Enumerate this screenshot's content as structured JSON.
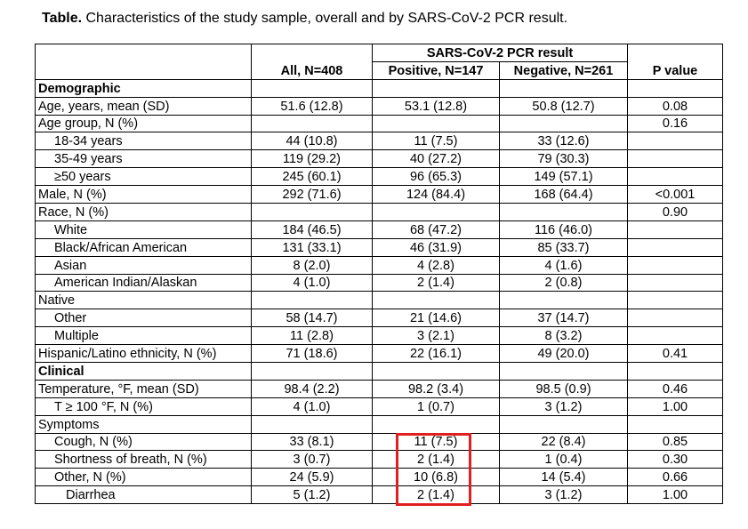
{
  "caption": {
    "label": "Table.",
    "text": " Characteristics of the study sample, overall and by SARS-CoV-2 PCR result."
  },
  "header": {
    "group": "SARS-CoV-2 PCR result",
    "all": "All, N=408",
    "positive": "Positive, N=147",
    "negative": "Negative, N=261",
    "pvalue": "P value"
  },
  "rows": [
    {
      "label": "Demographic",
      "all": "",
      "pos": "",
      "neg": "",
      "p": ""
    },
    {
      "label": "Age, years, mean (SD)",
      "all": "51.6 (12.8)",
      "pos": "53.1 (12.8)",
      "neg": "50.8 (12.7)",
      "p": "0.08"
    },
    {
      "label": "Age group, N (%)",
      "all": "",
      "pos": "",
      "neg": "",
      "p": "0.16"
    },
    {
      "label": "18-34 years",
      "all": "44 (10.8)",
      "pos": "11 (7.5)",
      "neg": "33 (12.6)",
      "p": ""
    },
    {
      "label": "35-49 years",
      "all": "119 (29.2)",
      "pos": "40 (27.2)",
      "neg": "79 (30.3)",
      "p": ""
    },
    {
      "label": "≥50 years",
      "all": "245 (60.1)",
      "pos": "96 (65.3)",
      "neg": "149 (57.1)",
      "p": ""
    },
    {
      "label": "Male, N (%)",
      "all": "292 (71.6)",
      "pos": "124 (84.4)",
      "neg": "168 (64.4)",
      "p": "<0.001"
    },
    {
      "label": "Race, N (%)",
      "all": "",
      "pos": "",
      "neg": "",
      "p": "0.90"
    },
    {
      "label": "White",
      "all": "184 (46.5)",
      "pos": "68 (47.2)",
      "neg": "116 (46.0)",
      "p": ""
    },
    {
      "label": "Black/African American",
      "all": "131 (33.1)",
      "pos": "46 (31.9)",
      "neg": "85 (33.7)",
      "p": ""
    },
    {
      "label": "Asian",
      "all": "8 (2.0)",
      "pos": "4 (2.8)",
      "neg": "4 (1.6)",
      "p": ""
    },
    {
      "label": "American Indian/Alaskan",
      "all": "4 (1.0)",
      "pos": "2 (1.4)",
      "neg": "2 (0.8)",
      "p": ""
    },
    {
      "label": "Native",
      "all": "",
      "pos": "",
      "neg": "",
      "p": ""
    },
    {
      "label": "Other",
      "all": "58 (14.7)",
      "pos": "21 (14.6)",
      "neg": "37 (14.7)",
      "p": ""
    },
    {
      "label": "Multiple",
      "all": "11 (2.8)",
      "pos": "3 (2.1)",
      "neg": "8 (3.2)",
      "p": ""
    },
    {
      "label": "Hispanic/Latino ethnicity, N (%)",
      "all": "71 (18.6)",
      "pos": "22 (16.1)",
      "neg": "49 (20.0)",
      "p": "0.41"
    },
    {
      "label": "Clinical",
      "all": "",
      "pos": "",
      "neg": "",
      "p": ""
    },
    {
      "label": "Temperature, °F, mean (SD)",
      "all": "98.4 (2.2)",
      "pos": "98.2 (3.4)",
      "neg": "98.5 (0.9)",
      "p": "0.46"
    },
    {
      "label": "T ≥ 100 °F, N (%)",
      "all": "4 (1.0)",
      "pos": "1 (0.7)",
      "neg": "3 (1.2)",
      "p": "1.00"
    },
    {
      "label": "Symptoms",
      "all": "",
      "pos": "",
      "neg": "",
      "p": ""
    },
    {
      "label": "Cough, N (%)",
      "all": "33 (8.1)",
      "pos": "11 (7.5)",
      "neg": "22 (8.4)",
      "p": "0.85"
    },
    {
      "label": "Shortness of breath, N (%)",
      "all": "3 (0.7)",
      "pos": "2 (1.4)",
      "neg": "1 (0.4)",
      "p": "0.30"
    },
    {
      "label": "Other, N (%)",
      "all": "24 (5.9)",
      "pos": "10 (6.8)",
      "neg": "14 (5.4)",
      "p": "0.66"
    },
    {
      "label": "Diarrhea",
      "all": "5 (1.2)",
      "pos": "2 (1.4)",
      "neg": "3 (1.2)",
      "p": "1.00"
    }
  ],
  "highlight_color": "#e02020"
}
